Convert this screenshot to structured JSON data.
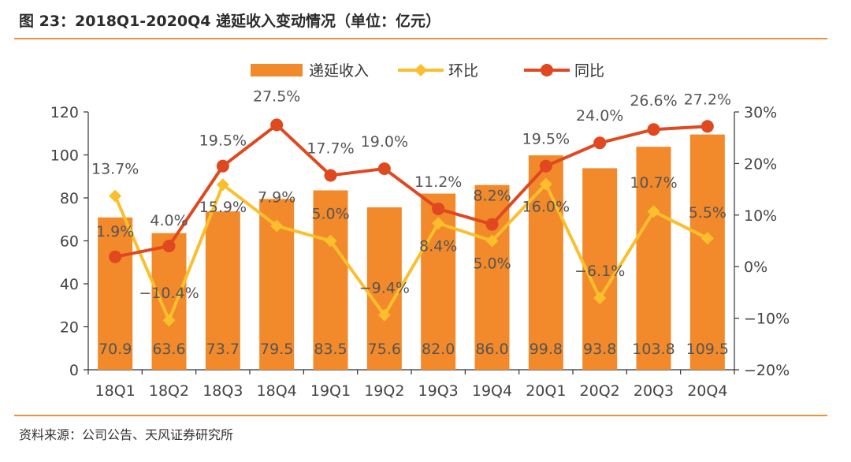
{
  "title": "图 23：2018Q1-2020Q4 递延收入变动情况（单位：亿元）",
  "source": "资料来源：公司公告、天风证券研究所",
  "colors": {
    "bar": "#f2892a",
    "qoq": "#fbbf2d",
    "yoy": "#e0481f",
    "rule": "#e8923a"
  },
  "chart_data": {
    "type": "bar+line",
    "categories": [
      "18Q1",
      "18Q2",
      "18Q3",
      "18Q4",
      "19Q1",
      "19Q2",
      "19Q3",
      "19Q4",
      "20Q1",
      "20Q2",
      "20Q3",
      "20Q4"
    ],
    "series": [
      {
        "name": "递延收入",
        "kind": "bar",
        "axis": "left",
        "values": [
          70.9,
          63.6,
          73.7,
          79.5,
          83.5,
          75.6,
          82.0,
          86.0,
          99.8,
          93.8,
          103.8,
          109.5
        ],
        "labels": [
          "70.9",
          "63.6",
          "73.7",
          "79.5",
          "83.5",
          "75.6",
          "82.0",
          "86.0",
          "99.8",
          "93.8",
          "103.8",
          "109.5"
        ]
      },
      {
        "name": "环比",
        "kind": "line",
        "axis": "right",
        "values": [
          13.7,
          -10.4,
          15.9,
          7.9,
          5.0,
          -9.4,
          8.4,
          5.0,
          16.0,
          -6.1,
          10.7,
          5.5
        ],
        "labels": [
          "13.7%",
          "−10.4%",
          "15.9%",
          "7.9%",
          "5.0%",
          "−9.4%",
          "8.4%",
          "5.0%",
          "16.0%",
          "−6.1%",
          "10.7%",
          "5.5%"
        ]
      },
      {
        "name": "同比",
        "kind": "line",
        "axis": "right",
        "values": [
          1.9,
          4.0,
          19.5,
          27.5,
          17.7,
          19.0,
          11.2,
          8.2,
          19.5,
          24.0,
          26.6,
          27.2
        ],
        "labels": [
          "1.9%",
          "4.0%",
          "19.5%",
          "27.5%",
          "17.7%",
          "19.0%",
          "11.2%",
          "8.2%",
          "19.5%",
          "24.0%",
          "26.6%",
          "27.2%"
        ]
      }
    ],
    "y_left": {
      "range": [
        0,
        120
      ],
      "ticks": [
        "0",
        "20",
        "40",
        "60",
        "80",
        "100",
        "120"
      ]
    },
    "y_right": {
      "range": [
        -20,
        30
      ],
      "ticks": [
        "−20%",
        "−10%",
        "0%",
        "10%",
        "20%",
        "30%"
      ]
    },
    "legend": "top-center",
    "grid": false
  }
}
